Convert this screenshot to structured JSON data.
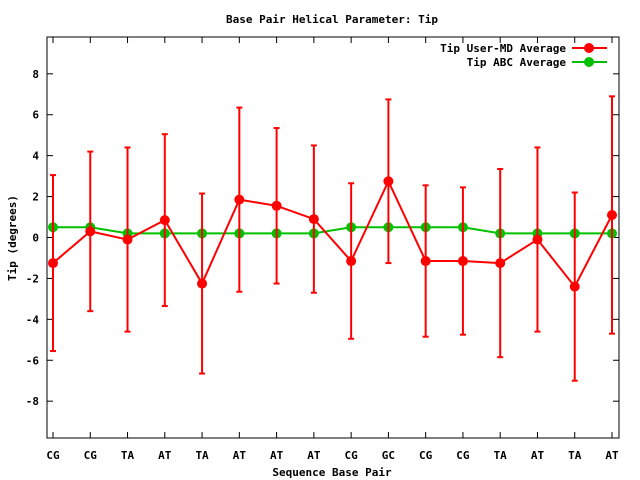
{
  "chart_data": {
    "type": "line",
    "title": "Base Pair Helical Parameter: Tip",
    "xlabel": "Sequence Base Pair",
    "ylabel": "Tip (degrees)",
    "ylim": [
      -9.8,
      9.8
    ],
    "yticks": [
      -8,
      -6,
      -4,
      -2,
      0,
      2,
      4,
      6,
      8
    ],
    "grid": false,
    "legend_position": "top-right",
    "categories": [
      "CG",
      "CG",
      "TA",
      "AT",
      "TA",
      "AT",
      "AT",
      "AT",
      "CG",
      "GC",
      "CG",
      "CG",
      "TA",
      "AT",
      "TA",
      "AT"
    ],
    "series": [
      {
        "name": "Tip User-MD Average",
        "color": "#ff0000",
        "marker": "circle",
        "values": [
          -1.25,
          0.3,
          -0.1,
          0.85,
          -2.25,
          1.85,
          1.55,
          0.9,
          -1.15,
          2.75,
          -1.15,
          -1.15,
          -1.25,
          -0.1,
          -2.4,
          1.1
        ],
        "error": [
          4.3,
          3.9,
          4.5,
          4.2,
          4.4,
          4.5,
          3.8,
          3.6,
          3.8,
          4.0,
          3.7,
          3.6,
          4.6,
          4.5,
          4.6,
          5.8
        ]
      },
      {
        "name": "Tip ABC Average",
        "color": "#00c000",
        "marker": "circle",
        "values": [
          0.5,
          0.5,
          0.2,
          0.2,
          0.2,
          0.2,
          0.2,
          0.2,
          0.5,
          0.5,
          0.5,
          0.5,
          0.2,
          0.2,
          0.2,
          0.2
        ]
      }
    ]
  }
}
